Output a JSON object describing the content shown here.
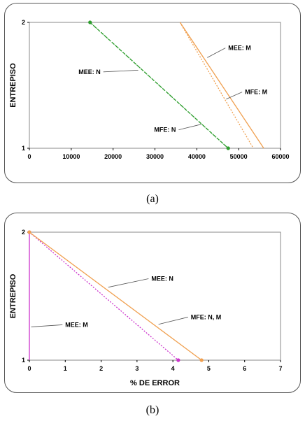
{
  "chart_data": [
    {
      "type": "line",
      "panel_caption": "(a)",
      "xlabel": "",
      "ylabel": "ENTREPISO",
      "xlim": [
        0,
        60000
      ],
      "ylim": [
        1,
        2
      ],
      "x_ticks": [
        "0",
        "10000",
        "20000",
        "30000",
        "40000",
        "50000",
        "60000"
      ],
      "y_ticks": [
        "1",
        "2"
      ],
      "series": [
        {
          "color": "#2e9e2e",
          "dash": "5,2",
          "marker": true,
          "points": [
            [
              14500,
              2
            ],
            [
              47500,
              1
            ]
          ]
        },
        {
          "color": "#2e9e2e",
          "dash": "1,2",
          "marker": false,
          "points": [
            [
              14500,
              2
            ],
            [
              47500,
              1
            ]
          ]
        },
        {
          "color": "#f0a050",
          "dash": "",
          "marker": false,
          "points": [
            [
              36000,
              2
            ],
            [
              56000,
              1
            ]
          ]
        },
        {
          "color": "#f0a050",
          "dash": "2,2",
          "marker": false,
          "points": [
            [
              36000,
              2
            ],
            [
              53500,
              1
            ]
          ]
        }
      ],
      "annotations": [
        {
          "text": "MEE:  N",
          "tx": 17000,
          "ty": 1.59,
          "ax": 26000,
          "ay": 1.62,
          "anchor": "end"
        },
        {
          "text": "MFE:  N",
          "tx": 35000,
          "ty": 1.13,
          "ax": 41000,
          "ay": 1.19,
          "anchor": "end"
        },
        {
          "text": "MEE:  M",
          "tx": 47500,
          "ty": 1.78,
          "ax": 42500,
          "ay": 1.72,
          "anchor": "start"
        },
        {
          "text": "MFE:  M",
          "tx": 51500,
          "ty": 1.43,
          "ax": 47000,
          "ay": 1.39,
          "anchor": "start"
        }
      ]
    },
    {
      "type": "line",
      "panel_caption": "(b)",
      "xlabel": "% DE ERROR",
      "ylabel": "ENTREPISO",
      "xlim": [
        0,
        7
      ],
      "ylim": [
        1,
        2
      ],
      "x_ticks": [
        "0",
        "1",
        "2",
        "3",
        "4",
        "5",
        "6",
        "7"
      ],
      "y_ticks": [
        "1",
        "2"
      ],
      "series": [
        {
          "color": "#cc33cc",
          "dash": "",
          "marker": false,
          "points": [
            [
              0,
              2
            ],
            [
              0,
              1
            ]
          ]
        },
        {
          "color": "#cc33cc",
          "dash": "2,2",
          "marker": true,
          "points": [
            [
              0,
              2
            ],
            [
              4.15,
              1
            ]
          ]
        },
        {
          "color": "#f0a050",
          "dash": "",
          "marker": true,
          "points": [
            [
              0,
              2
            ],
            [
              4.8,
              1
            ]
          ]
        }
      ],
      "annotations": [
        {
          "text": "MEE:  N",
          "tx": 3.4,
          "ty": 1.62,
          "ax": 2.2,
          "ay": 1.57,
          "anchor": "start"
        },
        {
          "text": "MFE:  N, M",
          "tx": 4.5,
          "ty": 1.32,
          "ax": 3.6,
          "ay": 1.28,
          "anchor": "start"
        },
        {
          "text": "MEE:  M",
          "tx": 1.0,
          "ty": 1.26,
          "ax": 0.05,
          "ay": 1.26,
          "anchor": "start"
        }
      ]
    }
  ]
}
